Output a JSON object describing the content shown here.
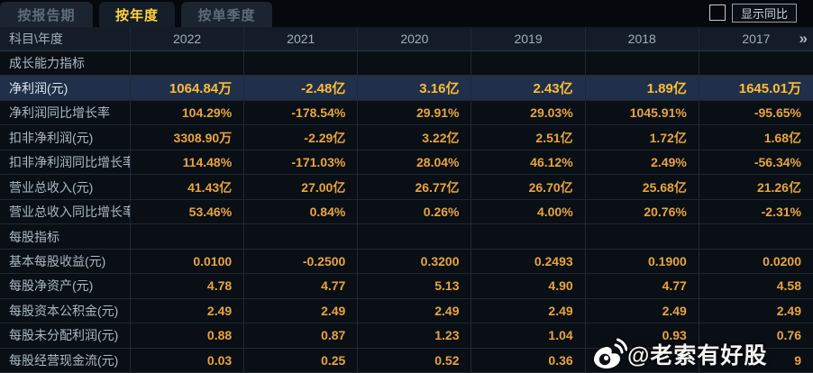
{
  "tabs": [
    {
      "label": "按报告期",
      "active": false
    },
    {
      "label": "按年度",
      "active": true
    },
    {
      "label": "按单季度",
      "active": false
    }
  ],
  "controls": {
    "show_yoy_label": "显示同比",
    "checkbox_checked": false
  },
  "table": {
    "corner_label": "科目\\年度",
    "year_columns": [
      "2022",
      "2021",
      "2020",
      "2019",
      "2018",
      "2017"
    ],
    "more_label": "»",
    "rows": [
      {
        "type": "section",
        "label": "成长能力指标",
        "values": [
          "",
          "",
          "",
          "",
          "",
          ""
        ]
      },
      {
        "type": "data",
        "highlight": true,
        "label": "净利润(元)",
        "values": [
          "1064.84万",
          "-2.48亿",
          "3.16亿",
          "2.43亿",
          "1.89亿",
          "1645.01万"
        ]
      },
      {
        "type": "data",
        "label": "净利润同比增长率",
        "values": [
          "104.29%",
          "-178.54%",
          "29.91%",
          "29.03%",
          "1045.91%",
          "-95.65%"
        ]
      },
      {
        "type": "data",
        "label": "扣非净利润(元)",
        "values": [
          "3308.90万",
          "-2.29亿",
          "3.22亿",
          "2.51亿",
          "1.72亿",
          "1.68亿"
        ]
      },
      {
        "type": "data",
        "label": "扣非净利润同比增长率",
        "values": [
          "114.48%",
          "-171.03%",
          "28.04%",
          "46.12%",
          "2.49%",
          "-56.34%"
        ]
      },
      {
        "type": "data",
        "label": "营业总收入(元)",
        "values": [
          "41.43亿",
          "27.00亿",
          "26.77亿",
          "26.70亿",
          "25.68亿",
          "21.26亿"
        ]
      },
      {
        "type": "data",
        "label": "营业总收入同比增长率",
        "values": [
          "53.46%",
          "0.84%",
          "0.26%",
          "4.00%",
          "20.76%",
          "-2.31%"
        ]
      },
      {
        "type": "section",
        "label": "每股指标",
        "values": [
          "",
          "",
          "",
          "",
          "",
          ""
        ]
      },
      {
        "type": "data",
        "label": "基本每股收益(元)",
        "values": [
          "0.0100",
          "-0.2500",
          "0.3200",
          "0.2493",
          "0.1900",
          "0.0200"
        ]
      },
      {
        "type": "data",
        "label": "每股净资产(元)",
        "values": [
          "4.78",
          "4.77",
          "5.13",
          "4.90",
          "4.77",
          "4.58"
        ]
      },
      {
        "type": "data",
        "label": "每股资本公积金(元)",
        "values": [
          "2.49",
          "2.49",
          "2.49",
          "2.49",
          "2.49",
          "2.49"
        ]
      },
      {
        "type": "data",
        "label": "每股未分配利润(元)",
        "values": [
          "0.88",
          "0.87",
          "1.23",
          "1.04",
          "0.93",
          "0.76"
        ]
      },
      {
        "type": "data",
        "label": "每股经营现金流(元)",
        "values": [
          "0.03",
          "0.25",
          "0.52",
          "0.36",
          "0",
          "9"
        ]
      }
    ]
  },
  "watermark": {
    "handle": "@老索有好股",
    "icon": "weibo-icon"
  },
  "colors": {
    "active_tab_text": "#ffd23e",
    "value_orange": "#e7a440",
    "highlight_row_bg": "#20304a",
    "highlight_value": "#ffbb38",
    "background": "#0a0f15"
  }
}
